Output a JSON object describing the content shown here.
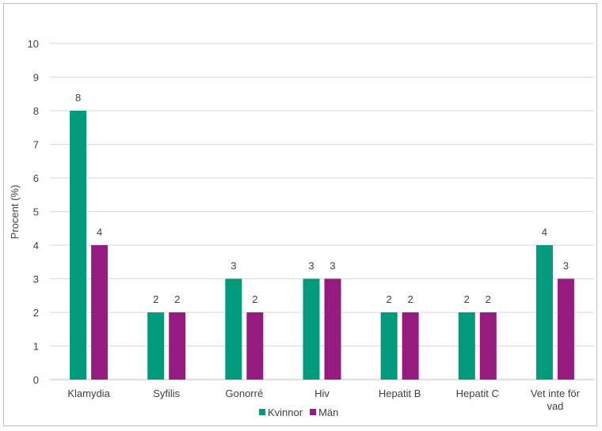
{
  "chart_data": {
    "type": "bar",
    "title": "",
    "xlabel": "",
    "ylabel": "Procent (%)",
    "ylim": [
      0,
      10
    ],
    "yticks": [
      0,
      1,
      2,
      3,
      4,
      5,
      6,
      7,
      8,
      9,
      10
    ],
    "grid": true,
    "legend_position": "bottom",
    "categories": [
      [
        "Klamydia"
      ],
      [
        "Syfilis"
      ],
      [
        "Gonorré"
      ],
      [
        "Hiv"
      ],
      [
        "Hepatit B"
      ],
      [
        "Hepatit C"
      ],
      [
        "Vet inte för",
        "vad"
      ]
    ],
    "series": [
      {
        "name": "Kvinnor",
        "color": "#009b7d",
        "values": [
          8,
          2,
          3,
          3,
          2,
          2,
          4
        ]
      },
      {
        "name": "Män",
        "color": "#951b81",
        "values": [
          4,
          2,
          2,
          3,
          2,
          2,
          3
        ]
      }
    ]
  }
}
